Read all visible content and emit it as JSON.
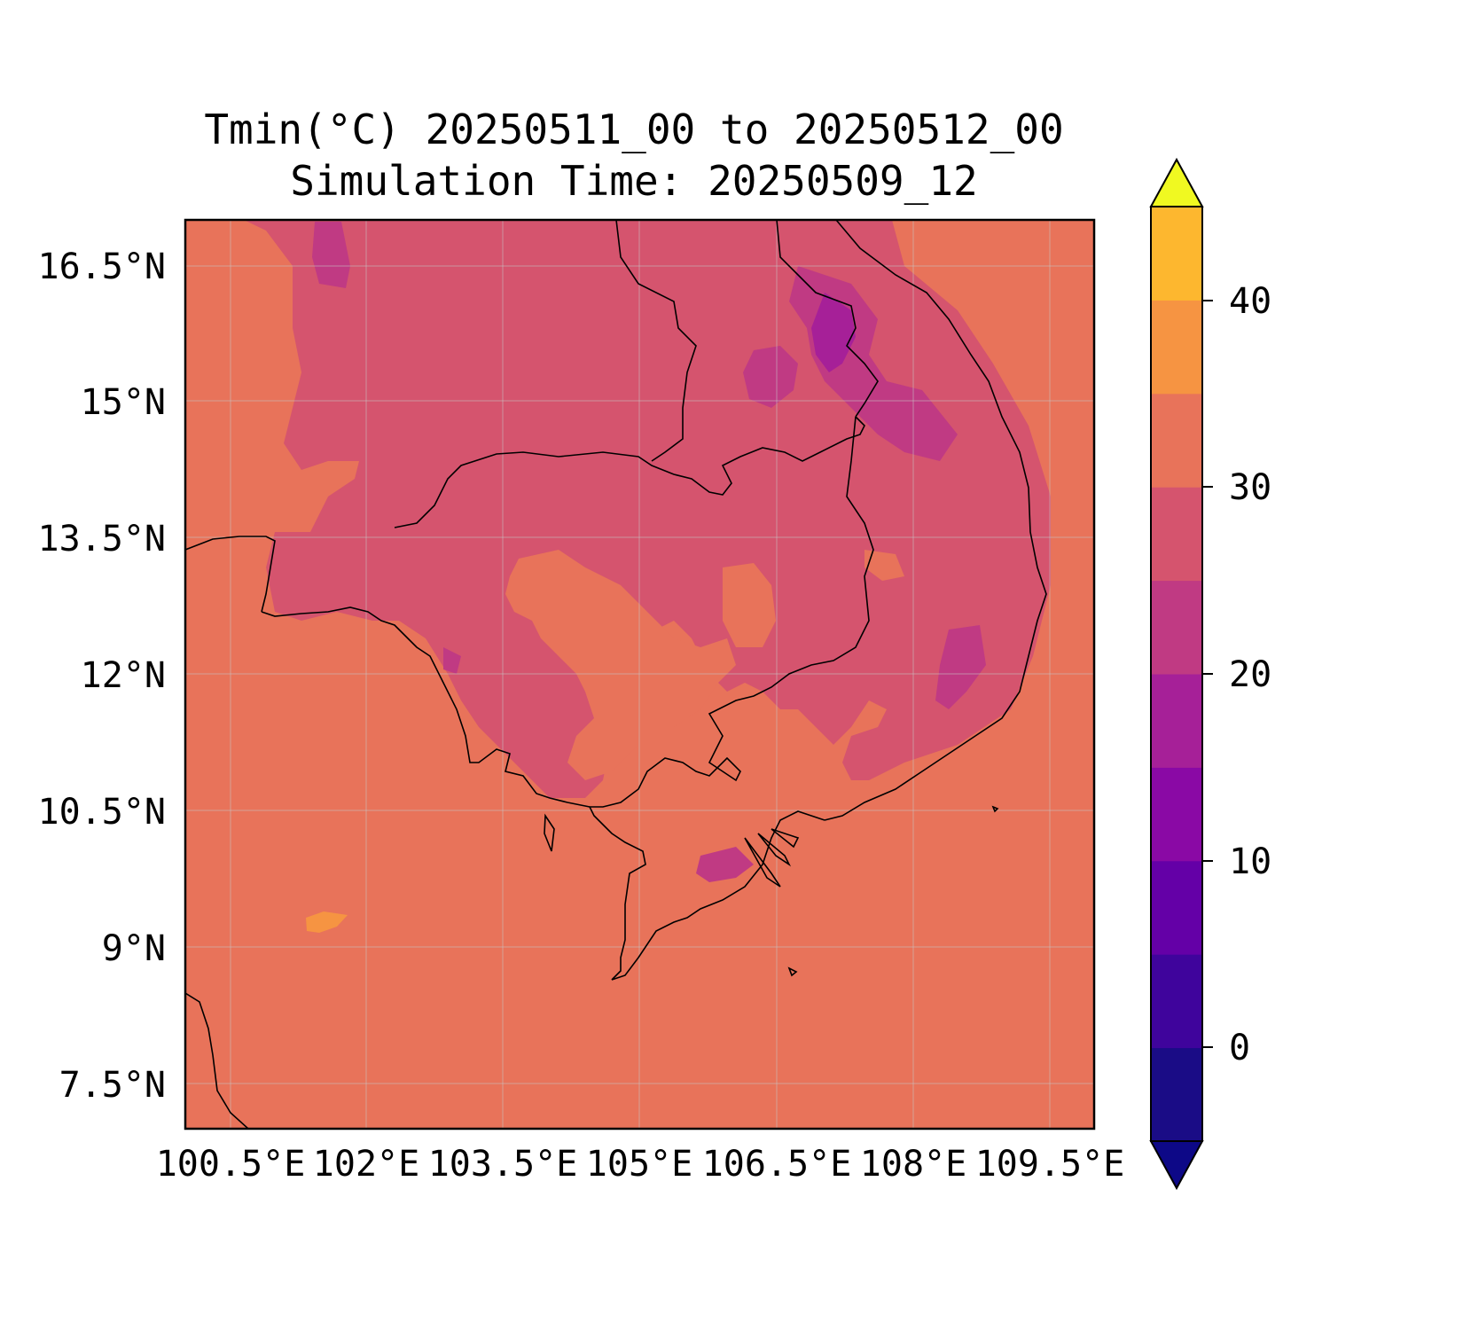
{
  "title": "Tmin(°C) 20250511_00 to 20250512_00",
  "subtitle": "Simulation Time: 20250509_12",
  "map": {
    "lat_ticks": [
      "16.5°N",
      "15°N",
      "13.5°N",
      "12°N",
      "10.5°N",
      "9°N",
      "7.5°N"
    ],
    "lon_ticks": [
      "100.5°E",
      "102°E",
      "103.5°E",
      "105°E",
      "106.5°E",
      "108°E",
      "109.5°E"
    ],
    "extent": {
      "lon": [
        100.5,
        110.5
      ],
      "lat": [
        7.0,
        17.0
      ]
    },
    "gridlines": true,
    "background_class_color": "#e8735a"
  },
  "colorbar": {
    "tick_labels": [
      "0",
      "10",
      "20",
      "30",
      "40"
    ],
    "levels": [
      -5,
      0,
      5,
      10,
      15,
      20,
      25,
      30,
      35,
      40,
      45
    ],
    "colors": [
      "#1a0c86",
      "#3f049c",
      "#6400a7",
      "#8a09a5",
      "#a62098",
      "#c03a83",
      "#d5546e",
      "#e8735a",
      "#f69442",
      "#fdb72f",
      "#f6e126"
    ],
    "under_color": "#0d0887",
    "over_color": "#f0f921",
    "extend": "both"
  }
}
